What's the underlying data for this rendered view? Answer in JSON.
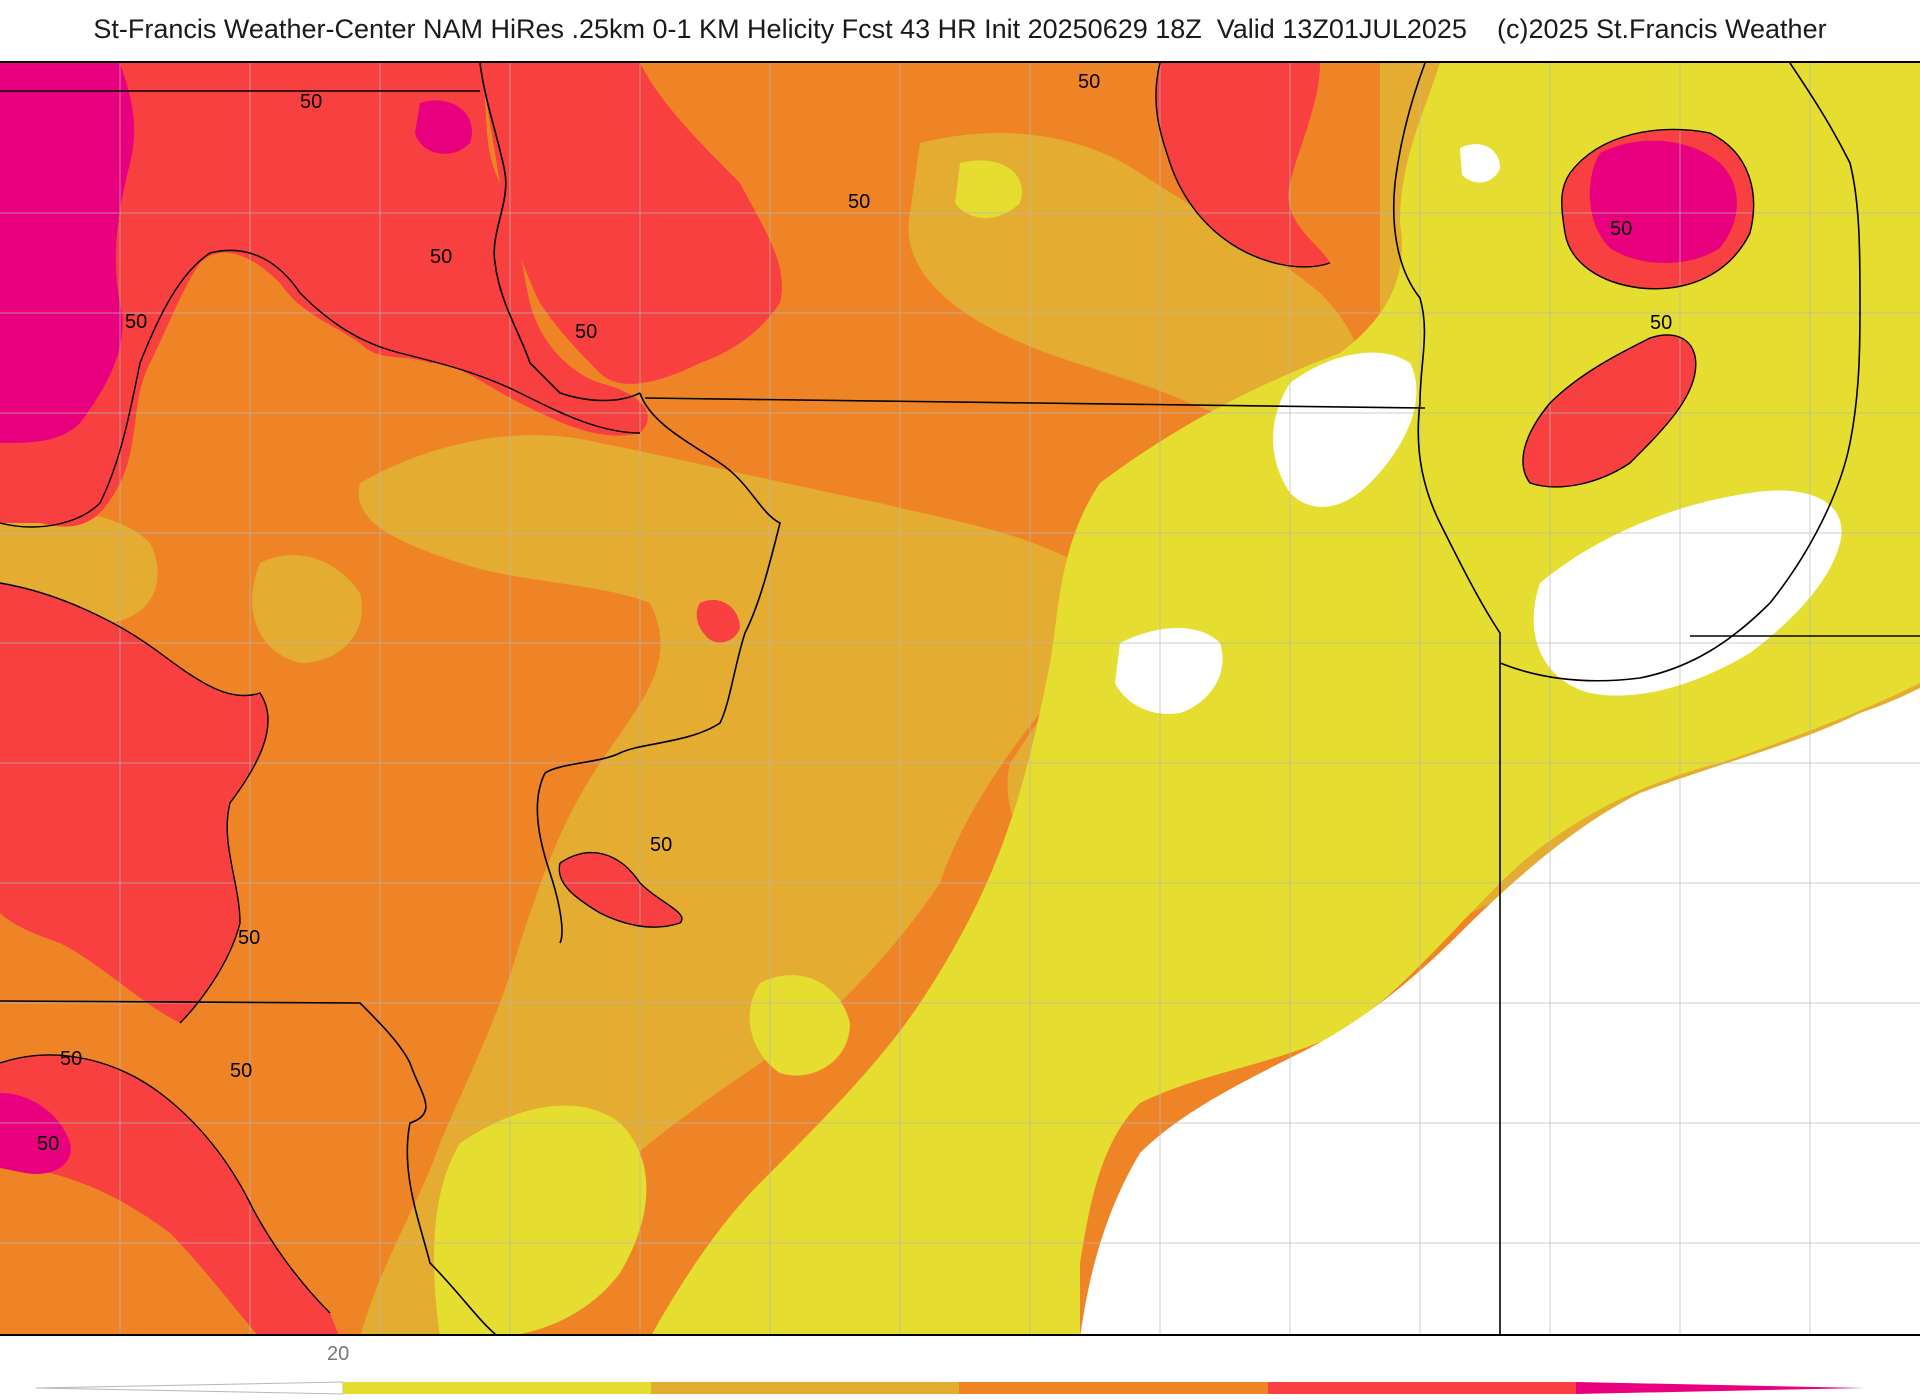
{
  "title": "St-Francis Weather-Center NAM HiRes .25km 0-1 KM Helicity Fcst 43 HR Init 20250629 18Z  Valid 13Z01JUL2025    (c)2025 St.Francis Weather",
  "colors": {
    "white": "#ffffff",
    "yellow": "#e5dd2f",
    "gold": "#e4ac30",
    "orange": "#ef8427",
    "red": "#f7403f",
    "magenta": "#e8007f",
    "county_lines": "#b7b7b7",
    "state_lines": "#000000",
    "contour": "#000000"
  },
  "contour_labels": [
    "50",
    "50",
    "50",
    "50",
    "50",
    "50",
    "50",
    "50",
    "50",
    "50",
    "50",
    "50",
    "50"
  ],
  "colorbar": {
    "tick_label": "20",
    "bins": [
      "#e5dd2f",
      "#e4ac30",
      "#ef8427",
      "#f7403f",
      "#e8007f"
    ]
  }
}
